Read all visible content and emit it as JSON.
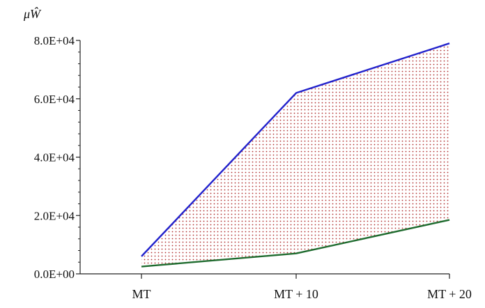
{
  "chart_data": {
    "type": "area",
    "ylabel": "μŴ",
    "categories": [
      "MT",
      "MT + 10",
      "MT + 20"
    ],
    "ylim": [
      0,
      80000
    ],
    "yticks": [
      "0.0E+00",
      "2.0E+04",
      "4.0E+04",
      "6.0E+04",
      "8.0E+04"
    ],
    "ytick_values": [
      0,
      20000,
      40000,
      60000,
      80000
    ],
    "grid": false,
    "band_fill": "dotted",
    "series": [
      {
        "values": [
          6000,
          62000,
          79000
        ],
        "color": "#2222cc"
      },
      {
        "values": [
          2500,
          7000,
          18500
        ],
        "color": "#1e6b2e"
      }
    ],
    "band_color": "#b03030"
  }
}
